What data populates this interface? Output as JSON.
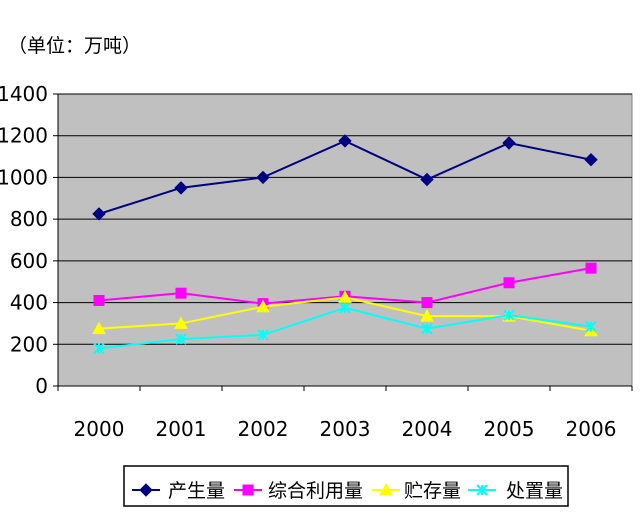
{
  "chart_data": {
    "type": "line",
    "unit_label": "（单位：万吨）",
    "categories": [
      "2000",
      "2001",
      "2002",
      "2003",
      "2004",
      "2005",
      "2006"
    ],
    "ylim": [
      0,
      1400
    ],
    "yticks": [
      0,
      200,
      400,
      600,
      800,
      1000,
      1200,
      1400
    ],
    "grid": true,
    "legend_position": "bottom",
    "series": [
      {
        "name": "产生量",
        "values": [
          825,
          950,
          1000,
          1175,
          990,
          1165,
          1085
        ],
        "color": "#000080",
        "marker": "diamond"
      },
      {
        "name": "综合利用量",
        "values": [
          410,
          445,
          395,
          430,
          400,
          495,
          565
        ],
        "color": "#FF00FF",
        "marker": "square"
      },
      {
        "name": "贮存量",
        "values": [
          275,
          300,
          380,
          425,
          335,
          335,
          265
        ],
        "color": "#FFFF00",
        "marker": "triangle"
      },
      {
        "name": "处置量",
        "values": [
          180,
          225,
          245,
          375,
          275,
          340,
          285
        ],
        "color": "#00FFFF",
        "marker": "star"
      }
    ],
    "plot_background": "#C0C0C0"
  }
}
